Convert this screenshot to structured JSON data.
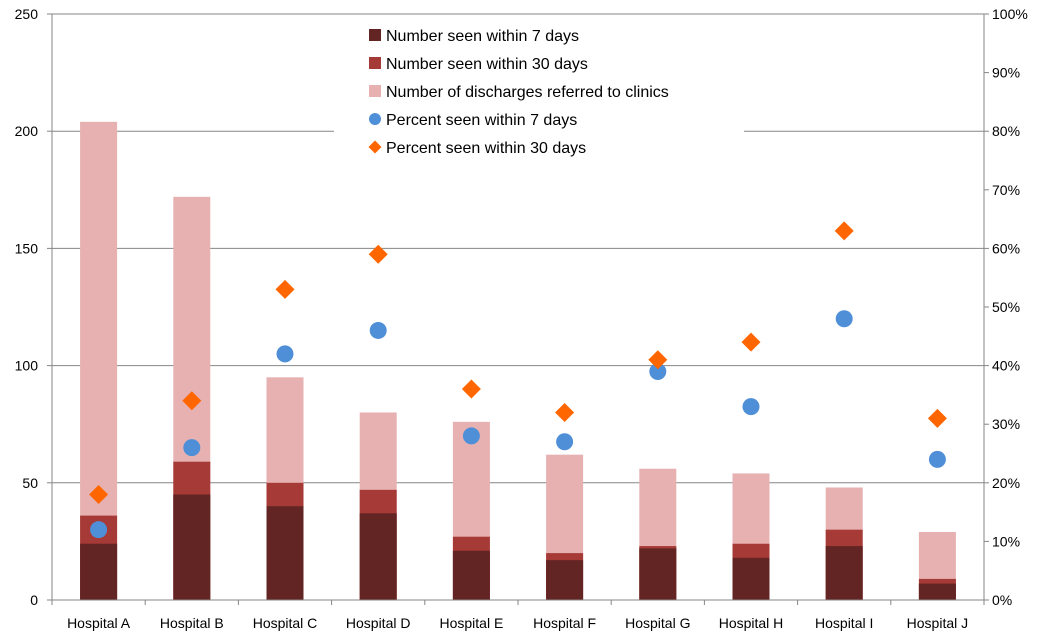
{
  "chart_data": {
    "type": "bar",
    "categories": [
      "Hospital A",
      "Hospital B",
      "Hospital C",
      "Hospital D",
      "Hospital E",
      "Hospital F",
      "Hospital G",
      "Hospital H",
      "Hospital I",
      "Hospital J"
    ],
    "left_axis": {
      "ylim": [
        0,
        250
      ],
      "ticks": [
        "0",
        "50",
        "100",
        "150",
        "200",
        "250"
      ],
      "tick_values": [
        0,
        50,
        100,
        150,
        200,
        250
      ]
    },
    "right_axis": {
      "ylim": [
        0,
        1
      ],
      "ticks": [
        "0%",
        "10%",
        "20%",
        "30%",
        "40%",
        "50%",
        "60%",
        "70%",
        "80%",
        "90%",
        "100%"
      ],
      "tick_values": [
        0,
        0.1,
        0.2,
        0.3,
        0.4,
        0.5,
        0.6,
        0.7,
        0.8,
        0.9,
        1.0
      ]
    },
    "grid": true,
    "legend_position": "top-center",
    "series": [
      {
        "name": "Number seen within 7 days",
        "kind": "bar",
        "axis": "left",
        "color": "#632523",
        "values": [
          24,
          45,
          40,
          37,
          21,
          17,
          22,
          18,
          23,
          7
        ]
      },
      {
        "name": "Number seen within 30 days",
        "kind": "bar",
        "axis": "left",
        "color": "#A53A37",
        "values": [
          36,
          59,
          50,
          47,
          27,
          20,
          23,
          24,
          30,
          9
        ]
      },
      {
        "name": "Number of discharges referred to clinics",
        "kind": "bar",
        "axis": "left",
        "color": "#E6B1B0",
        "values": [
          204,
          172,
          95,
          80,
          76,
          62,
          56,
          54,
          48,
          29
        ]
      },
      {
        "name": "Percent seen within 7 days",
        "kind": "scatter",
        "marker": "circle",
        "axis": "right",
        "color": "#4F8FD8",
        "values": [
          0.12,
          0.26,
          0.42,
          0.46,
          0.28,
          0.27,
          0.39,
          0.33,
          0.48,
          0.24
        ]
      },
      {
        "name": "Percent seen within 30 days",
        "kind": "scatter",
        "marker": "diamond",
        "axis": "right",
        "color": "#FF6600",
        "values": [
          0.18,
          0.34,
          0.53,
          0.59,
          0.36,
          0.32,
          0.41,
          0.44,
          0.63,
          0.31
        ]
      }
    ]
  }
}
